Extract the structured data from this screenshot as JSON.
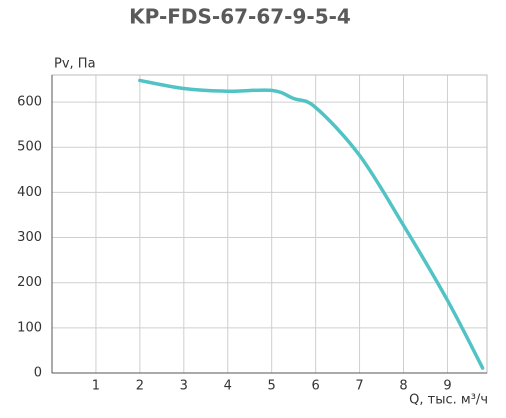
{
  "chart_data": {
    "type": "line",
    "title": "KP-FDS-67-67-9-5-4",
    "y_label": "Pv, Па",
    "x_label": "Q, тыс. м³/ч",
    "x": [
      2,
      3,
      4,
      5,
      5.5,
      6,
      7,
      8,
      9,
      9.8
    ],
    "series": [
      {
        "color": "#52c3c4",
        "values": [
          648,
          630,
          624,
          626,
          608,
          588,
          482,
          327,
          161,
          11
        ]
      }
    ],
    "xlim": [
      0,
      9.9
    ],
    "ylim": [
      0,
      660
    ],
    "xticks": [
      1,
      2,
      3,
      4,
      5,
      6,
      7,
      8,
      9
    ],
    "yticks": [
      0,
      100,
      200,
      300,
      400,
      500,
      600
    ],
    "grid": true
  }
}
